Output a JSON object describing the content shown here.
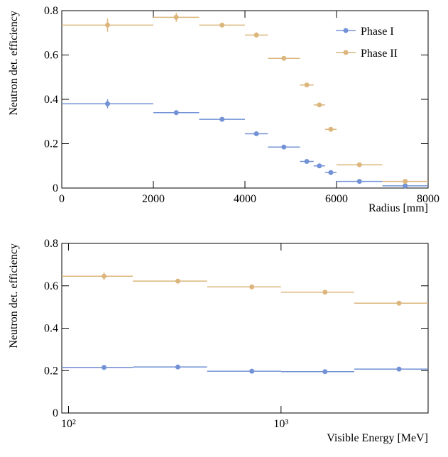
{
  "chart_data": [
    {
      "type": "errorbar",
      "xlabel": "Radius [mm]",
      "ylabel": "Neutron det. efficiency",
      "xscale": "linear",
      "xlim": [
        0,
        8000
      ],
      "xticks": [
        0,
        2000,
        4000,
        6000,
        8000
      ],
      "ylim": [
        0,
        0.8
      ],
      "yticks": [
        0,
        0.2,
        0.4,
        0.6,
        0.8
      ],
      "legend": "upper right",
      "bins": [
        0,
        2000,
        3000,
        4000,
        4500,
        5200,
        5500,
        5750,
        6000,
        7000,
        8000
      ],
      "x": [
        1000,
        2500,
        3500,
        4250,
        4850,
        5350,
        5625,
        5875,
        6500,
        7500
      ],
      "series": [
        {
          "name": "Phase I",
          "color": "#7393d6",
          "values": [
            0.38,
            0.34,
            0.31,
            0.245,
            0.185,
            0.12,
            0.1,
            0.07,
            0.03,
            0.01
          ],
          "yerr": [
            0.02,
            0.01,
            0.008,
            0.008,
            0.006,
            0.008,
            0.008,
            0.008,
            0.005,
            0.005
          ]
        },
        {
          "name": "Phase II",
          "color": "#dcb67c",
          "values": [
            0.735,
            0.77,
            0.735,
            0.69,
            0.585,
            0.465,
            0.375,
            0.265,
            0.105,
            0.03
          ],
          "yerr": [
            0.03,
            0.02,
            0.01,
            0.012,
            0.008,
            0.01,
            0.01,
            0.01,
            0.008,
            0.008
          ]
        }
      ]
    },
    {
      "type": "errorbar",
      "xlabel": "Visible Energy [MeV]",
      "ylabel": "Neutron det. efficiency",
      "xscale": "log",
      "xlim": [
        93,
        4920
      ],
      "xticks": [
        {
          "value": 100,
          "label": "10²"
        },
        {
          "value": 1000,
          "label": "10³"
        }
      ],
      "ylim": [
        0,
        0.8
      ],
      "yticks": [
        0,
        0.2,
        0.4,
        0.6,
        0.8
      ],
      "bins": [
        93,
        201,
        449,
        1000,
        2210,
        4920
      ],
      "x": [
        147,
        327,
        729,
        1610,
        3590
      ],
      "series": [
        {
          "color": "#7393d6",
          "values": [
            0.215,
            0.217,
            0.197,
            0.195,
            0.207
          ],
          "yerr": [
            0.008,
            0.006,
            0.005,
            0.005,
            0.005
          ]
        },
        {
          "color": "#dcb67c",
          "values": [
            0.645,
            0.622,
            0.595,
            0.57,
            0.518
          ],
          "yerr": [
            0.018,
            0.01,
            0.008,
            0.008,
            0.008
          ]
        }
      ]
    }
  ]
}
